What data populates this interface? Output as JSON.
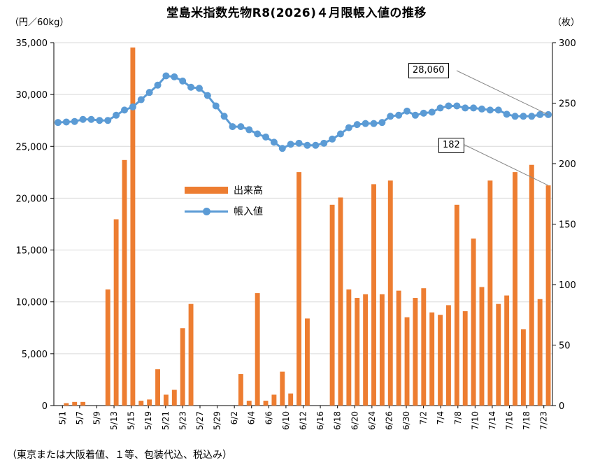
{
  "chart_data": {
    "type": "bar+line",
    "title": "堂島米指数先物R8(2026)４月限帳入値の推移",
    "left_axis_unit": "（円／60kg）",
    "right_axis_unit": "（枚）",
    "footnote": "（東京または大阪着値、１等、包装代込、税込み）",
    "y_left": {
      "min": 0,
      "max": 35000,
      "step": 5000,
      "ticks": [
        "0",
        "5,000",
        "10,000",
        "15,000",
        "20,000",
        "25,000",
        "30,000",
        "35,000"
      ]
    },
    "y_right": {
      "min": 0,
      "max": 300,
      "step": 50,
      "ticks": [
        "0",
        "50",
        "100",
        "150",
        "200",
        "250",
        "300"
      ]
    },
    "x_tick_labels": [
      "5/1",
      "5/7",
      "5/9",
      "5/13",
      "5/15",
      "5/19",
      "5/21",
      "5/23",
      "5/27",
      "5/29",
      "6/2",
      "6/4",
      "6/6",
      "6/10",
      "6/12",
      "6/16",
      "6/18",
      "6/20",
      "6/24",
      "6/26",
      "6/30",
      "7/2",
      "7/4",
      "7/8",
      "7/10",
      "7/14",
      "7/16",
      "7/18",
      "7/23"
    ],
    "series": [
      {
        "name": "出来高",
        "type": "bar",
        "axis": "right",
        "color": "#ED7D31",
        "values": [
          0,
          2,
          3,
          3,
          0,
          0,
          96,
          154,
          203,
          296,
          4,
          5,
          30,
          9,
          13,
          64,
          84,
          0,
          0,
          0,
          0,
          0,
          26,
          4,
          93,
          4,
          9,
          28,
          10,
          193,
          72,
          0,
          0,
          166,
          172,
          96,
          89,
          92,
          183,
          92,
          186,
          95,
          73,
          89,
          97,
          77,
          75,
          83,
          166,
          78,
          138,
          98,
          186,
          84,
          91,
          193,
          63,
          199,
          88,
          182
        ]
      },
      {
        "name": "帳入値",
        "type": "line",
        "axis": "left",
        "color": "#5B9BD5",
        "values": [
          27300,
          27350,
          27400,
          27600,
          27600,
          27500,
          27500,
          28000,
          28500,
          28800,
          29500,
          30200,
          30900,
          31800,
          31700,
          31300,
          30700,
          30600,
          29900,
          28900,
          27900,
          26900,
          26900,
          26600,
          26200,
          25900,
          25400,
          24800,
          25200,
          25300,
          25100,
          25100,
          25300,
          25700,
          26200,
          26800,
          27100,
          27200,
          27200,
          27300,
          27900,
          28000,
          28400,
          28000,
          28200,
          28300,
          28700,
          28900,
          28900,
          28700,
          28700,
          28600,
          28500,
          28500,
          28100,
          27900,
          27900,
          27900,
          28060,
          28060
        ]
      }
    ],
    "callouts": [
      {
        "label": "28,060",
        "series": "帳入値",
        "point": "last"
      },
      {
        "label": "182",
        "series": "出来高",
        "point": "last"
      }
    ],
    "legend_position": "center-left"
  }
}
